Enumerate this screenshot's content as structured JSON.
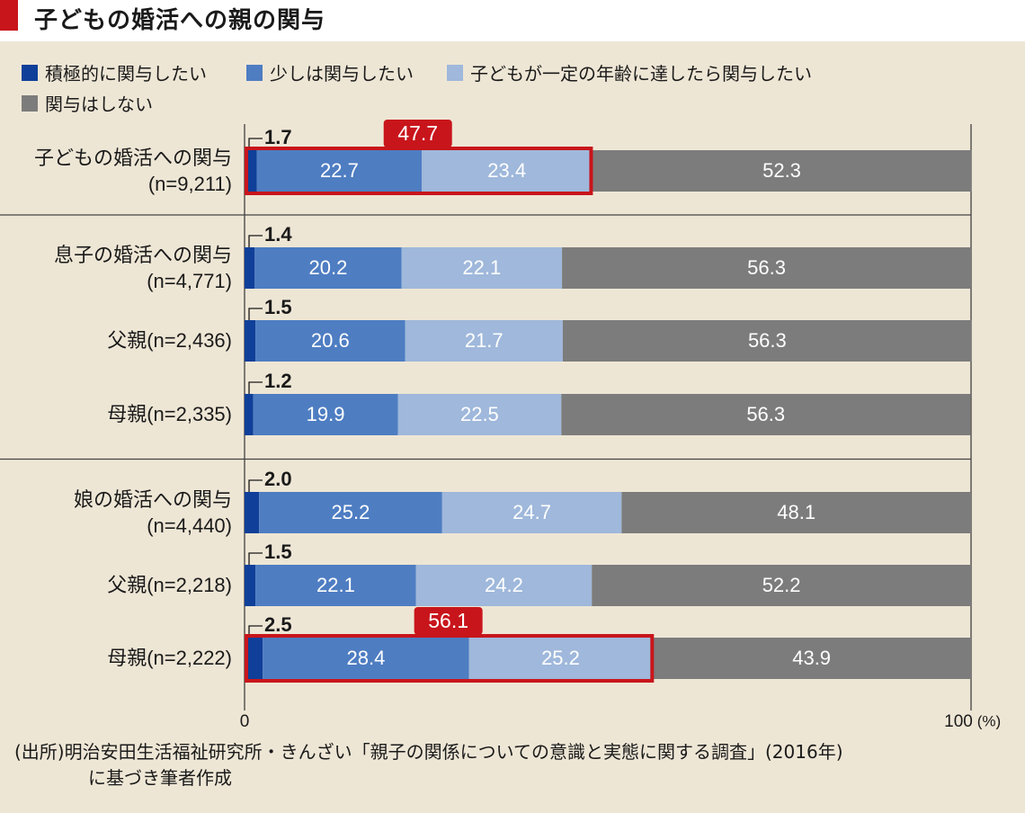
{
  "title": "子どもの婚活への親の関与",
  "legend": [
    {
      "label": "積極的に関与したい",
      "color": "#0f3f99"
    },
    {
      "label": "少しは関与したい",
      "color": "#4e7dc2"
    },
    {
      "label": "子どもが一定の年齢に達したら関与したい",
      "color": "#9fb8db"
    },
    {
      "label": "関与はしない",
      "color": "#7c7c7c"
    }
  ],
  "chart_data": {
    "type": "bar",
    "orientation": "horizontal",
    "stacked": true,
    "xlim": [
      0,
      100
    ],
    "x_ticks": [
      "0",
      "100"
    ],
    "x_unit": "(%)",
    "categories": [
      [
        "子どもの婚活への関与",
        "(n=9,211)"
      ],
      [
        "息子の婚活への関与",
        "(n=4,771)"
      ],
      [
        "父親(n=2,436)"
      ],
      [
        "母親(n=2,335)"
      ],
      [
        "娘の婚活への関与",
        "(n=4,440)"
      ],
      [
        "父親(n=2,218)"
      ],
      [
        "母親(n=2,222)"
      ]
    ],
    "series": [
      {
        "name": "積極的に関与したい",
        "values": [
          1.7,
          1.4,
          1.5,
          1.2,
          2.0,
          1.5,
          2.5
        ]
      },
      {
        "name": "少しは関与したい",
        "values": [
          22.7,
          20.2,
          20.6,
          19.9,
          25.2,
          22.1,
          28.4
        ]
      },
      {
        "name": "子どもが一定の年齢に達したら関与したい",
        "values": [
          23.4,
          22.1,
          21.7,
          22.5,
          24.7,
          24.2,
          25.2
        ]
      },
      {
        "name": "関与はしない",
        "values": [
          52.3,
          56.3,
          56.3,
          56.3,
          48.1,
          52.2,
          43.9
        ]
      }
    ],
    "small_value_labels": [
      "1.7",
      "1.4",
      "1.5",
      "1.2",
      "2.0",
      "1.5",
      "2.5"
    ],
    "value_labels": [
      [
        "22.7",
        "23.4",
        "52.3"
      ],
      [
        "20.2",
        "22.1",
        "56.3"
      ],
      [
        "20.6",
        "21.7",
        "56.3"
      ],
      [
        "19.9",
        "22.5",
        "56.3"
      ],
      [
        "25.2",
        "24.7",
        "48.1"
      ],
      [
        "22.1",
        "24.2",
        "52.2"
      ],
      [
        "28.4",
        "25.2",
        "43.9"
      ]
    ],
    "highlights": [
      {
        "row": 0,
        "label": "47.7",
        "total": 47.7
      },
      {
        "row": 6,
        "label": "56.1",
        "total": 56.1
      }
    ],
    "group_dividers_after_rows": [
      0,
      3
    ],
    "highlight_color": "#c8151b"
  },
  "footnote": {
    "line1": "(出所)明治安田生活福祉研究所・きんざい「親子の関係についての意識と実態に関する調査」(2016年)",
    "line2": "に基づき筆者作成"
  }
}
